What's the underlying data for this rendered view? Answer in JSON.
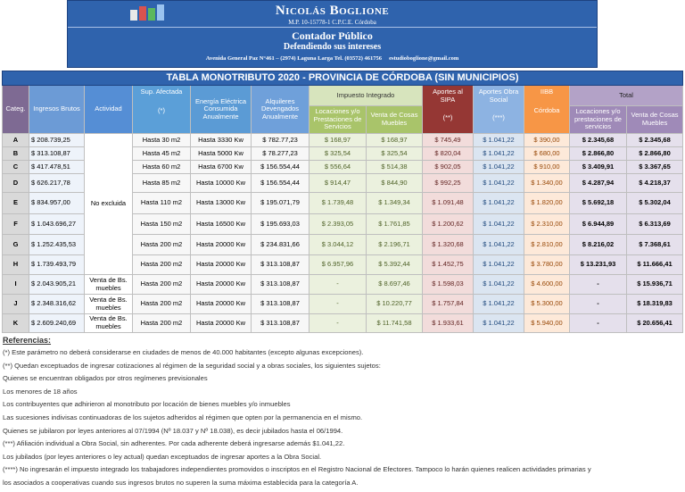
{
  "header": {
    "name": "Nicolás Boglione",
    "registration": "M.P. 10-15778-1 C.P.C.E. Córdoba",
    "title": "Contador Público",
    "slogan": "Defendiendo sus intereses",
    "contact": "Avenida General Paz N°461 – (2974) Laguna Larga Tel. (03572) 461756     estudioboglione@gmail.com"
  },
  "table": {
    "title": "TABLA MONOTRIBUTO 2020 - PROVINCIA DE CÓRDOBA (SIN MUNICIPIOS)",
    "columns": [
      {
        "label": "Categ."
      },
      {
        "label": "Ingresos Brutos"
      },
      {
        "label": "Actividad"
      },
      {
        "label": "Sup. Afectada",
        "note": "(*)"
      },
      {
        "label": "Energía Eléctrica Consumida Anualmente"
      },
      {
        "label": "Alquileres Devengados Anualmente"
      },
      {
        "label": "Impuesto Integrado",
        "subcolumns": [
          "Locaciones y/o Prestaciones de Servicios",
          "Venta de Cosas Muebles"
        ]
      },
      {
        "label": "Aportes al SIPA",
        "note": "(**)"
      },
      {
        "label": "Aportes Obra Social",
        "note": "(***)"
      },
      {
        "label": "IIBB",
        "note": "Córdoba"
      },
      {
        "label": "Total",
        "subcolumns": [
          "Locaciones y/o prestaciones de servicios",
          "Venta de Cosas Muebles"
        ]
      }
    ],
    "rows": [
      {
        "activity": "No excluida",
        "cells": [
          "A",
          "$ 208.739,25",
          "Hasta 30 m2",
          "Hasta 3330 Kw",
          "$ 782.77,23",
          "$ 168,97",
          "$ 168,97",
          "$ 745,49",
          "$ 1.041,22",
          "$ 390,00",
          "$ 2.345,68",
          "$ 2.345,68"
        ]
      },
      {
        "cells": [
          "B",
          "$ 313.108,87",
          "Hasta 45 m2",
          "Hasta 5000 Kw",
          "$ 78.277,23",
          "$ 325,54",
          "$ 325,54",
          "$ 820,04",
          "$ 1.041,22",
          "$ 680,00",
          "$ 2.866,80",
          "$ 2.866,80"
        ]
      },
      {
        "cells": [
          "C",
          "$ 417.478,51",
          "Hasta 60 m2",
          "Hasta 6700 Kw",
          "$ 156.554,44",
          "$ 556,64",
          "$ 514,38",
          "$ 902,05",
          "$ 1.041,22",
          "$ 910,00",
          "$ 3.409,91",
          "$ 3.367,65"
        ]
      },
      {
        "cells": [
          "D",
          "$ 626.217,78",
          "Hasta 85 m2",
          "Hasta 10000 Kw",
          "$ 156.554,44",
          "$ 914,47",
          "$ 844,90",
          "$ 992,25",
          "$ 1.041,22",
          "$ 1.340,00",
          "$ 4.287,94",
          "$ 4.218,37"
        ]
      },
      {
        "cells": [
          "E",
          "$ 834.957,00",
          "Hasta 110 m2",
          "Hasta 13000 Kw",
          "$ 195.071,79",
          "$ 1.739,48",
          "$ 1.349,34",
          "$ 1.091,48",
          "$ 1.041,22",
          "$ 1.820,00",
          "$ 5.692,18",
          "$ 5.302,04"
        ]
      },
      {
        "cells": [
          "F",
          "$ 1.043.696,27",
          "Hasta 150 m2",
          "Hasta 16500 Kw",
          "$ 195.693,03",
          "$ 2.393,05",
          "$ 1.761,85",
          "$ 1.200,62",
          "$ 1.041,22",
          "$ 2.310,00",
          "$ 6.944,89",
          "$ 6.313,69"
        ]
      },
      {
        "cells": [
          "G",
          "$ 1.252.435,53",
          "Hasta 200 m2",
          "Hasta 20000 Kw",
          "$ 234.831,66",
          "$ 3.044,12",
          "$ 2.196,71",
          "$ 1.320,68",
          "$ 1.041,22",
          "$ 2.810,00",
          "$ 8.216,02",
          "$ 7.368,61"
        ]
      },
      {
        "cells": [
          "H",
          "$ 1.739.493,79",
          "Hasta 200 m2",
          "Hasta 20000 Kw",
          "$ 313.108,87",
          "$ 6.957,96",
          "$ 5.392,44",
          "$ 1.452,75",
          "$ 1.041,22",
          "$ 3.780,00",
          "$ 13.231,93",
          "$ 11.666,41"
        ]
      },
      {
        "activity": "Venta de Bs. muebles",
        "cells": [
          "I",
          "$ 2.043.905,21",
          "Hasta 200 m2",
          "Hasta 20000 Kw",
          "$ 313.108,87",
          "-",
          "$ 8.697,46",
          "$ 1.598,03",
          "$ 1.041,22",
          "$ 4.600,00",
          "-",
          "$ 15.936,71"
        ]
      },
      {
        "activity": "Venta de Bs. muebles",
        "cells": [
          "J",
          "$ 2.348.316,62",
          "Hasta 200 m2",
          "Hasta 20000 Kw",
          "$ 313.108,87",
          "-",
          "$ 10.220,77",
          "$ 1.757,84",
          "$ 1.041,22",
          "$ 5.300,00",
          "-",
          "$ 18.319,83"
        ]
      },
      {
        "activity": "Venta de Bs. muebles",
        "cells": [
          "K",
          "$ 2.609.240,69",
          "Hasta 200 m2",
          "Hasta 20000 Kw",
          "$ 313.108,87",
          "-",
          "$ 11.741,58",
          "$ 1.933,61",
          "$ 1.041,22",
          "$ 5.940,00",
          "-",
          "$ 20.656,41"
        ]
      }
    ]
  },
  "references": {
    "title": "Referencias:",
    "lines": [
      "(*) Este parámetro no deberá considerarse en ciudades de menos de 40.000 habitantes (excepto algunas excepciones).",
      "(**) Quedan exceptuados de ingresar cotizaciones al régimen de la seguridad social y a obras sociales, los siguientes sujetos:",
      "Quienes se encuentran obligados por otros regímenes previsionales",
      "Los menores de 18 años",
      "Los contribuyentes que adhirieron al monotributo por locación de bienes muebles y/o inmuebles",
      "Las sucesiones indivisas continuadoras de los sujetos adheridos al régimen que opten por la permanencia en el mismo.",
      "Quienes se jubilaron por leyes anteriores al 07/1994 (Nº 18.037 y Nº 18.038), es decir jubilados hasta el 06/1994.",
      "(***) Afiliación individual a Obra Social, sin adherentes. Por cada adherente deberá ingresarse además $1.041,22.",
      "Los jubilados (por leyes anteriores o ley actual) quedan exceptuados de ingresar aportes a la Obra Social.",
      "(****) No ingresarán el impuesto integrado los trabajadores independientes promovidos o inscriptos en el Registro Nacional de Efectores. Tampoco lo harán quienes realicen actividades primarias y",
      "los asociados a cooperativas cuando sus ingresos brutos no superen la suma máxima establecida para la categoría A."
    ]
  }
}
